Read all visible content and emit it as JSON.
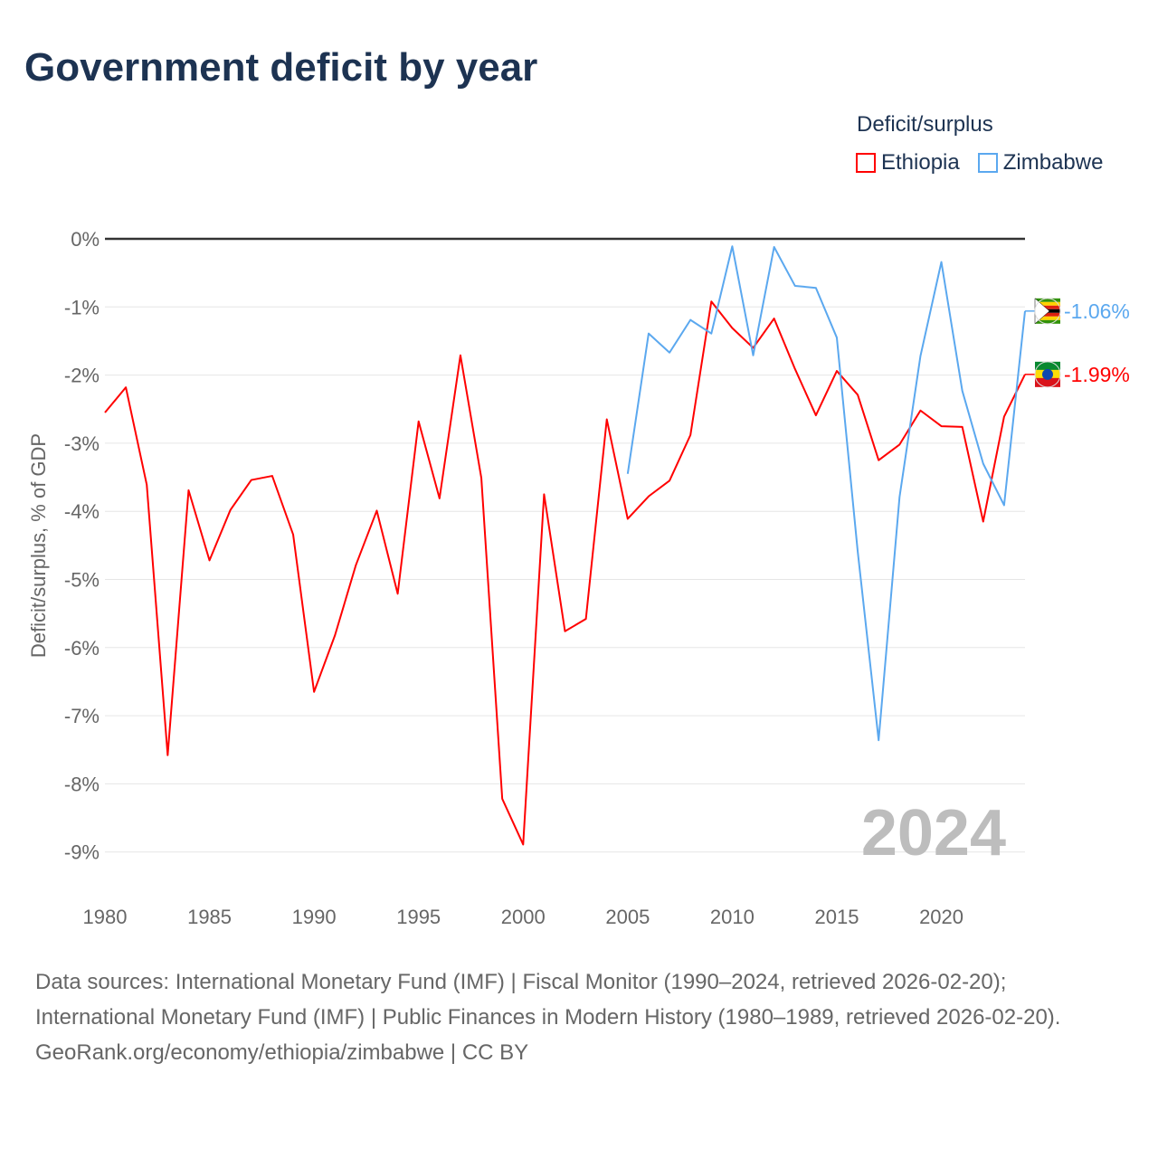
{
  "title": "Government deficit by year",
  "legend": {
    "title": "Deficit/surplus",
    "items": [
      {
        "name": "Ethiopia",
        "color": "#ff0000"
      },
      {
        "name": "Zimbabwe",
        "color": "#5ba8ef"
      }
    ]
  },
  "chart_data": {
    "type": "line",
    "title": "Government deficit by year",
    "ylabel": "Deficit/surplus, % of GDP",
    "xlabel": "",
    "xlim": [
      1980,
      2024
    ],
    "ylim": [
      -9.5,
      0
    ],
    "x_ticks": [
      "1980",
      "1985",
      "1990",
      "1995",
      "2000",
      "2005",
      "2010",
      "2015",
      "2020"
    ],
    "y_ticks": [
      {
        "v": 0,
        "label": "0%"
      },
      {
        "v": -1,
        "label": "-1%"
      },
      {
        "v": -2,
        "label": "-2%"
      },
      {
        "v": -3,
        "label": "-3%"
      },
      {
        "v": -4,
        "label": "-4%"
      },
      {
        "v": -5,
        "label": "-5%"
      },
      {
        "v": -6,
        "label": "-6%"
      },
      {
        "v": -7,
        "label": "-7%"
      },
      {
        "v": -8,
        "label": "-8%"
      },
      {
        "v": -9,
        "label": "-9%"
      }
    ],
    "grid": true,
    "year_watermark": "2024",
    "series": [
      {
        "name": "Ethiopia",
        "color": "#ff0000",
        "end_label": "-1.99%",
        "start_year": 1980,
        "values": [
          -2.55,
          -2.18,
          -3.61,
          -7.58,
          -3.69,
          -4.72,
          -3.98,
          -3.54,
          -3.48,
          -4.34,
          -6.65,
          -5.82,
          -4.79,
          -3.99,
          -5.21,
          -2.68,
          -3.81,
          -1.71,
          -3.51,
          -8.22,
          -8.89,
          -3.75,
          -5.76,
          -5.58,
          -2.65,
          -4.11,
          -3.78,
          -3.55,
          -2.88,
          -0.92,
          -1.31,
          -1.6,
          -1.17,
          -1.91,
          -2.59,
          -1.94,
          -2.29,
          -3.25,
          -3.02,
          -2.52,
          -2.75,
          -2.76,
          -4.15,
          -2.61,
          -1.99
        ]
      },
      {
        "name": "Zimbabwe",
        "color": "#5ba8ef",
        "end_label": "-1.06%",
        "start_year": 2005,
        "values": [
          -3.45,
          -1.39,
          -1.67,
          -1.19,
          -1.39,
          -0.11,
          -1.71,
          -0.12,
          -0.69,
          -0.72,
          -1.45,
          -4.59,
          -7.36,
          -3.79,
          -1.72,
          -0.34,
          -2.23,
          -3.3,
          -3.91,
          -1.06
        ]
      }
    ]
  },
  "footer": {
    "sources": "Data sources: International Monetary Fund (IMF) | Fiscal Monitor (1990–2024, retrieved 2026-02-20); International Monetary Fund (IMF) | Public Finances in Modern History (1980–1989, retrieved 2026-02-20).",
    "credit": "GeoRank.org/economy/ethiopia/zimbabwe | CC BY"
  }
}
